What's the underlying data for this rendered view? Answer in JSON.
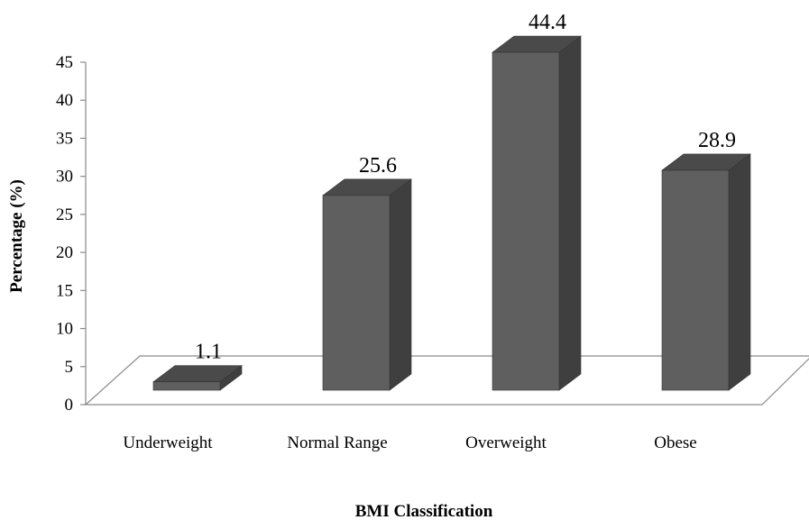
{
  "chart_data": {
    "type": "bar",
    "categories": [
      "Underweight",
      "Normal Range",
      "Overweight",
      "Obese"
    ],
    "values": [
      1.1,
      25.6,
      44.4,
      28.9
    ],
    "data_labels": [
      "1.1",
      "25.6",
      "44.4",
      "28.9"
    ],
    "xlabel": "BMI Classification",
    "ylabel": "Percentage (%)",
    "ylim": [
      0,
      45
    ],
    "yticks": [
      "0",
      "5",
      "10",
      "15",
      "20",
      "25",
      "30",
      "35",
      "40",
      "45"
    ],
    "grid": false,
    "legend": "none",
    "style": "3d-column",
    "colors": {
      "front": "#5f5f5f",
      "top": "#4a4a4a",
      "side": "#3f3f3f",
      "floor_stroke": "#8a8a8a"
    }
  }
}
